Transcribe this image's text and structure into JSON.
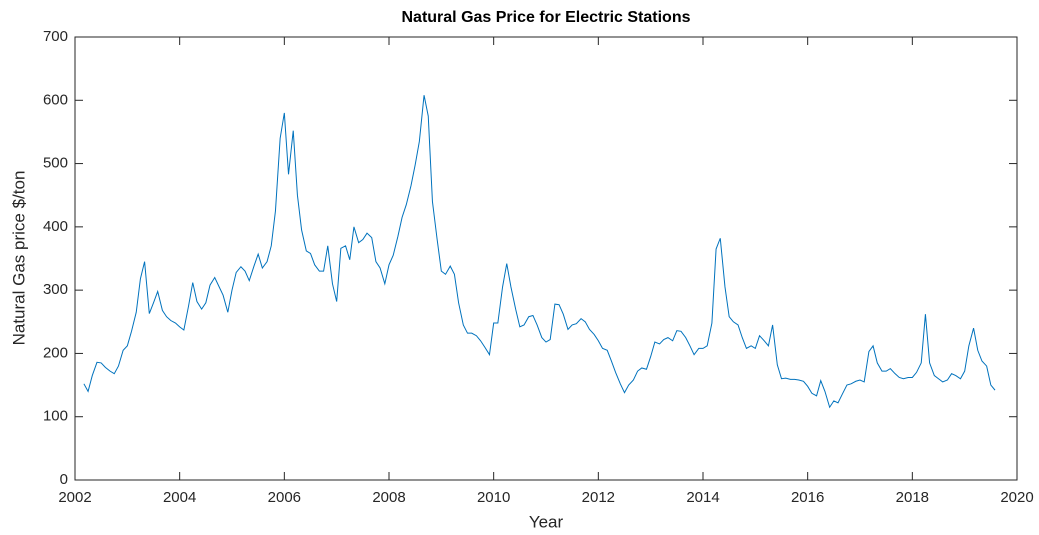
{
  "chart_data": {
    "type": "line",
    "title": "Natural Gas Price for Electric Stations",
    "x_label": "Year",
    "y_label": "Natural Gas price $/ton",
    "xlim": [
      2002,
      2020
    ],
    "xticks": [
      2002,
      2004,
      2006,
      2008,
      2010,
      2012,
      2014,
      2016,
      2018,
      2020
    ],
    "ylim": [
      0,
      700
    ],
    "yticks": [
      0,
      100,
      200,
      300,
      400,
      500,
      600,
      700
    ],
    "x": [
      2002.17,
      2002.25,
      2002.33,
      2002.42,
      2002.5,
      2002.58,
      2002.67,
      2002.75,
      2002.83,
      2002.92,
      2003,
      2003.08,
      2003.17,
      2003.25,
      2003.33,
      2003.42,
      2003.5,
      2003.58,
      2003.67,
      2003.75,
      2003.83,
      2003.92,
      2004,
      2004.08,
      2004.17,
      2004.25,
      2004.33,
      2004.42,
      2004.5,
      2004.58,
      2004.67,
      2004.75,
      2004.83,
      2004.92,
      2005,
      2005.08,
      2005.17,
      2005.25,
      2005.33,
      2005.42,
      2005.5,
      2005.58,
      2005.67,
      2005.75,
      2005.83,
      2005.92,
      2006,
      2006.08,
      2006.17,
      2006.25,
      2006.33,
      2006.42,
      2006.5,
      2006.58,
      2006.67,
      2006.75,
      2006.83,
      2006.92,
      2007,
      2007.08,
      2007.17,
      2007.25,
      2007.33,
      2007.42,
      2007.5,
      2007.58,
      2007.67,
      2007.75,
      2007.83,
      2007.92,
      2008,
      2008.08,
      2008.17,
      2008.25,
      2008.33,
      2008.42,
      2008.5,
      2008.58,
      2008.67,
      2008.75,
      2008.83,
      2008.92,
      2009,
      2009.08,
      2009.17,
      2009.25,
      2009.33,
      2009.42,
      2009.5,
      2009.58,
      2009.67,
      2009.75,
      2009.83,
      2009.92,
      2010,
      2010.08,
      2010.17,
      2010.25,
      2010.33,
      2010.42,
      2010.5,
      2010.58,
      2010.67,
      2010.75,
      2010.83,
      2010.92,
      2011,
      2011.08,
      2011.17,
      2011.25,
      2011.33,
      2011.42,
      2011.5,
      2011.58,
      2011.67,
      2011.75,
      2011.83,
      2011.92,
      2012,
      2012.08,
      2012.17,
      2012.25,
      2012.33,
      2012.42,
      2012.5,
      2012.58,
      2012.67,
      2012.75,
      2012.83,
      2012.92,
      2013,
      2013.08,
      2013.17,
      2013.25,
      2013.33,
      2013.42,
      2013.5,
      2013.58,
      2013.67,
      2013.75,
      2013.83,
      2013.92,
      2014,
      2014.08,
      2014.17,
      2014.25,
      2014.33,
      2014.42,
      2014.5,
      2014.58,
      2014.67,
      2014.75,
      2014.83,
      2014.92,
      2015,
      2015.08,
      2015.17,
      2015.25,
      2015.33,
      2015.42,
      2015.5,
      2015.58,
      2015.67,
      2015.75,
      2015.83,
      2015.92,
      2016,
      2016.08,
      2016.17,
      2016.25,
      2016.33,
      2016.42,
      2016.5,
      2016.58,
      2016.67,
      2016.75,
      2016.83,
      2016.92,
      2017,
      2017.08,
      2017.17,
      2017.25,
      2017.33,
      2017.42,
      2017.5,
      2017.58,
      2017.67,
      2017.75,
      2017.83,
      2017.92,
      2018,
      2018.08,
      2018.17,
      2018.25,
      2018.33,
      2018.42,
      2018.5,
      2018.58,
      2018.67,
      2018.75,
      2018.83,
      2018.92,
      2019,
      2019.08,
      2019.17,
      2019.25,
      2019.33,
      2019.42,
      2019.5,
      2019.58
    ],
    "series": [
      {
        "color": "#0072bd",
        "values": [
          152,
          140,
          165,
          186,
          185,
          178,
          172,
          168,
          180,
          205,
          212,
          235,
          265,
          318,
          345,
          263,
          280,
          298,
          268,
          258,
          252,
          248,
          242,
          237,
          275,
          312,
          282,
          270,
          280,
          308,
          320,
          306,
          292,
          265,
          300,
          328,
          337,
          330,
          315,
          338,
          357,
          335,
          345,
          370,
          425,
          540,
          580,
          483,
          552,
          450,
          395,
          362,
          358,
          340,
          330,
          330,
          370,
          310,
          282,
          366,
          370,
          348,
          400,
          375,
          380,
          390,
          383,
          345,
          335,
          310,
          340,
          355,
          385,
          415,
          435,
          465,
          498,
          535,
          608,
          575,
          440,
          380,
          330,
          325,
          338,
          325,
          280,
          245,
          232,
          232,
          228,
          220,
          210,
          198,
          248,
          248,
          305,
          342,
          305,
          270,
          242,
          245,
          258,
          260,
          245,
          225,
          218,
          222,
          278,
          277,
          262,
          238,
          245,
          247,
          255,
          250,
          238,
          230,
          220,
          208,
          205,
          188,
          170,
          152,
          138,
          150,
          158,
          172,
          177,
          175,
          195,
          218,
          215,
          222,
          225,
          220,
          236,
          235,
          225,
          212,
          198,
          208,
          208,
          212,
          248,
          365,
          382,
          305,
          258,
          250,
          245,
          225,
          208,
          212,
          208,
          228,
          220,
          212,
          245,
          182,
          160,
          161,
          159,
          159,
          158,
          156,
          148,
          137,
          133,
          157,
          140,
          115,
          125,
          122,
          137,
          150,
          152,
          156,
          158,
          155,
          203,
          212,
          185,
          172,
          172,
          176,
          168,
          162,
          160,
          162,
          162,
          170,
          185,
          262,
          185,
          165,
          160,
          155,
          158,
          168,
          165,
          160,
          172,
          212,
          240,
          205,
          188,
          180,
          150,
          142
        ]
      }
    ]
  }
}
